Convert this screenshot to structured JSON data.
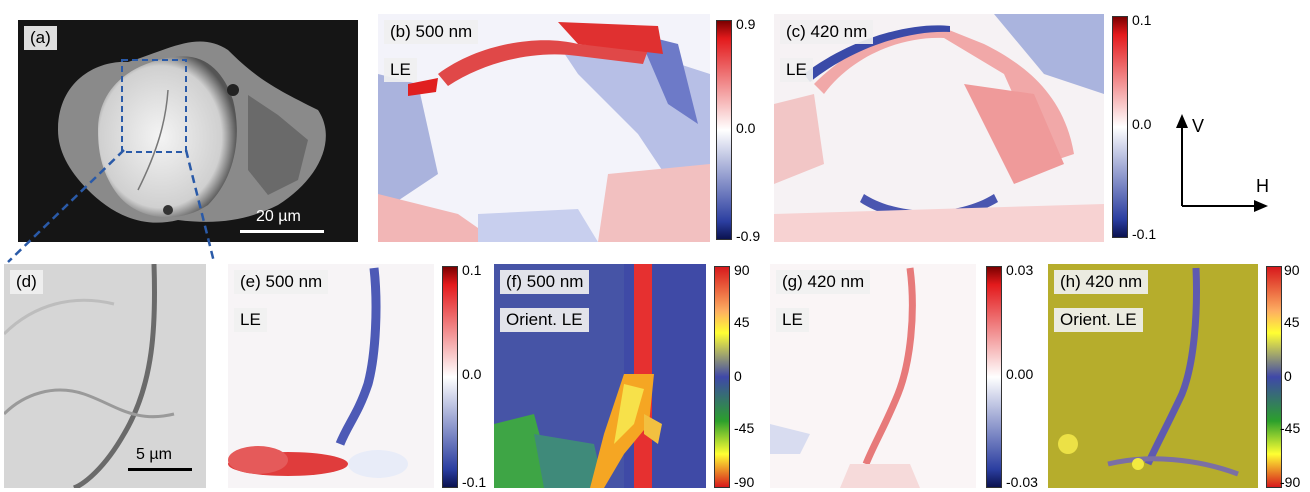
{
  "panels": {
    "a": {
      "label": "(a)",
      "scale": "20 µm"
    },
    "b": {
      "label": "(b) 500 nm",
      "sub": "LE",
      "cbar": [
        "0.9",
        "0.0",
        "-0.9"
      ]
    },
    "c": {
      "label": "(c) 420 nm",
      "sub": "LE",
      "cbar": [
        "0.1",
        "0.0",
        "-0.1"
      ]
    },
    "d": {
      "label": "(d)",
      "scale": "5 µm"
    },
    "e": {
      "label": "(e) 500 nm",
      "sub": "LE",
      "cbar": [
        "0.1",
        "0.0",
        "-0.1"
      ]
    },
    "f": {
      "label": "(f) 500 nm",
      "sub": "Orient. LE",
      "cbar": [
        "90",
        "45",
        "0",
        "-45",
        "-90"
      ]
    },
    "g": {
      "label": "(g) 420 nm",
      "sub": "LE",
      "cbar": [
        "0.03",
        "0.00",
        "-0.03"
      ]
    },
    "h": {
      "label": "(h) 420 nm",
      "sub": "Orient. LE",
      "cbar": [
        "90",
        "45",
        "0",
        "-45",
        "-90"
      ]
    }
  },
  "axes": {
    "v": "V",
    "h": "H"
  },
  "colors": {
    "red": "#d7191c",
    "blue": "#2c3e9b",
    "white": "#ffffff",
    "olive": "#b4ad2a"
  }
}
